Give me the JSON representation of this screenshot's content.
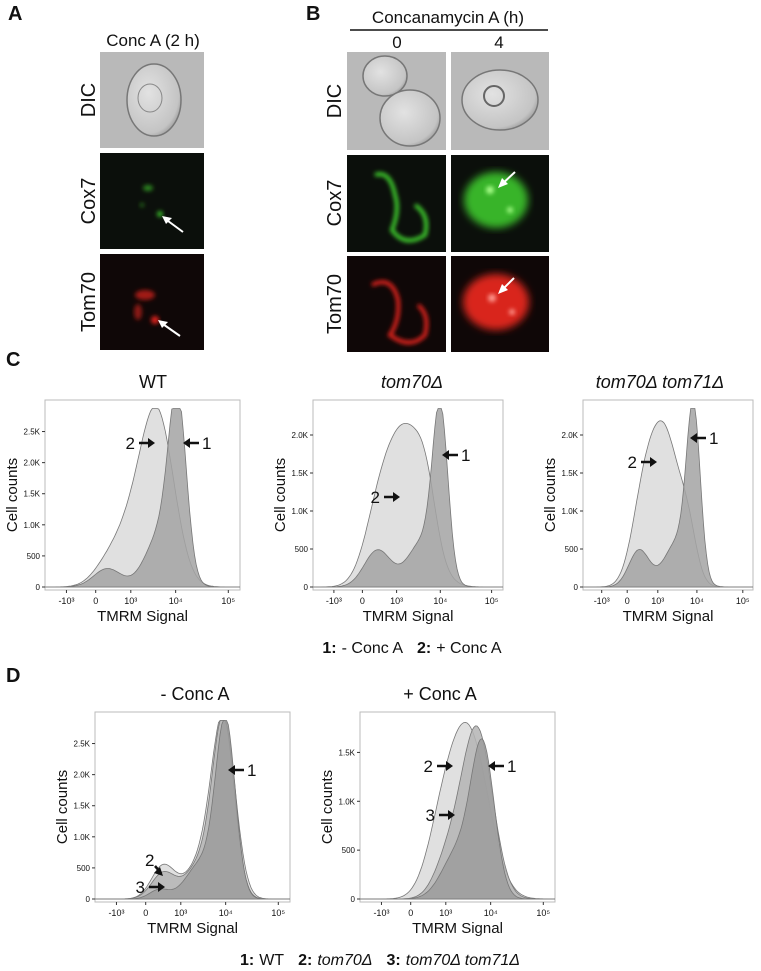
{
  "panels": {
    "A": {
      "letter": "A",
      "title": "Conc A (2 h)",
      "rows": [
        "DIC",
        "Cox7",
        "Tom70"
      ]
    },
    "B": {
      "letter": "B",
      "title": "Concanamycin A (h)",
      "columns": [
        "0",
        "4"
      ],
      "rows": [
        "DIC",
        "Cox7",
        "Tom70"
      ]
    },
    "C": {
      "letter": "C",
      "plots": [
        {
          "title": "WT",
          "ylabel": "Cell counts",
          "xlabel": "TMRM Signal",
          "yticks": [
            "0",
            "500",
            "1.0K",
            "1.5K",
            "2.0K",
            "2.5K"
          ],
          "xticks": [
            "-10³",
            "0",
            "10³",
            "10⁴",
            "10⁵"
          ],
          "arrows": [
            "2",
            "1"
          ]
        },
        {
          "title": "tom70Δ",
          "ylabel": "Cell counts",
          "xlabel": "TMRM Signal",
          "yticks": [
            "0",
            "500",
            "1.0K",
            "1.5K",
            "2.0K"
          ],
          "xticks": [
            "-10³",
            "0",
            "10³",
            "10⁴",
            "10⁵"
          ],
          "arrows": [
            "2",
            "1"
          ]
        },
        {
          "title": "tom70Δ tom71Δ",
          "ylabel": "Cell counts",
          "xlabel": "TMRM Signal",
          "yticks": [
            "0",
            "500",
            "1.0K",
            "1.5K",
            "2.0K"
          ],
          "xticks": [
            "-10³",
            "0",
            "10³",
            "10⁴",
            "10⁵"
          ],
          "arrows": [
            "2",
            "1"
          ]
        }
      ],
      "legend": [
        {
          "key": "1:",
          "text": "- Conc A"
        },
        {
          "key": "2:",
          "text": "+ Conc A"
        }
      ]
    },
    "D": {
      "letter": "D",
      "plots": [
        {
          "title": "- Conc A",
          "ylabel": "Cell counts",
          "xlabel": "TMRM Signal",
          "yticks": [
            "0",
            "500",
            "1.0K",
            "1.5K",
            "2.0K",
            "2.5K"
          ],
          "xticks": [
            "-10³",
            "0",
            "10³",
            "10⁴",
            "10⁵"
          ],
          "arrows": [
            "1",
            "2",
            "3"
          ]
        },
        {
          "title": "+ Conc A",
          "ylabel": "Cell counts",
          "xlabel": "TMRM Signal",
          "yticks": [
            "0",
            "500",
            "1.0K",
            "1.5K"
          ],
          "xticks": [
            "-10³",
            "0",
            "10³",
            "10⁴",
            "10⁵"
          ],
          "arrows": [
            "2",
            "1",
            "3"
          ]
        }
      ],
      "legend": [
        {
          "key": "1:",
          "text": "WT"
        },
        {
          "key": "2:",
          "text": "tom70Δ"
        },
        {
          "key": "3:",
          "text": "tom70Δ tom71Δ"
        }
      ]
    }
  }
}
